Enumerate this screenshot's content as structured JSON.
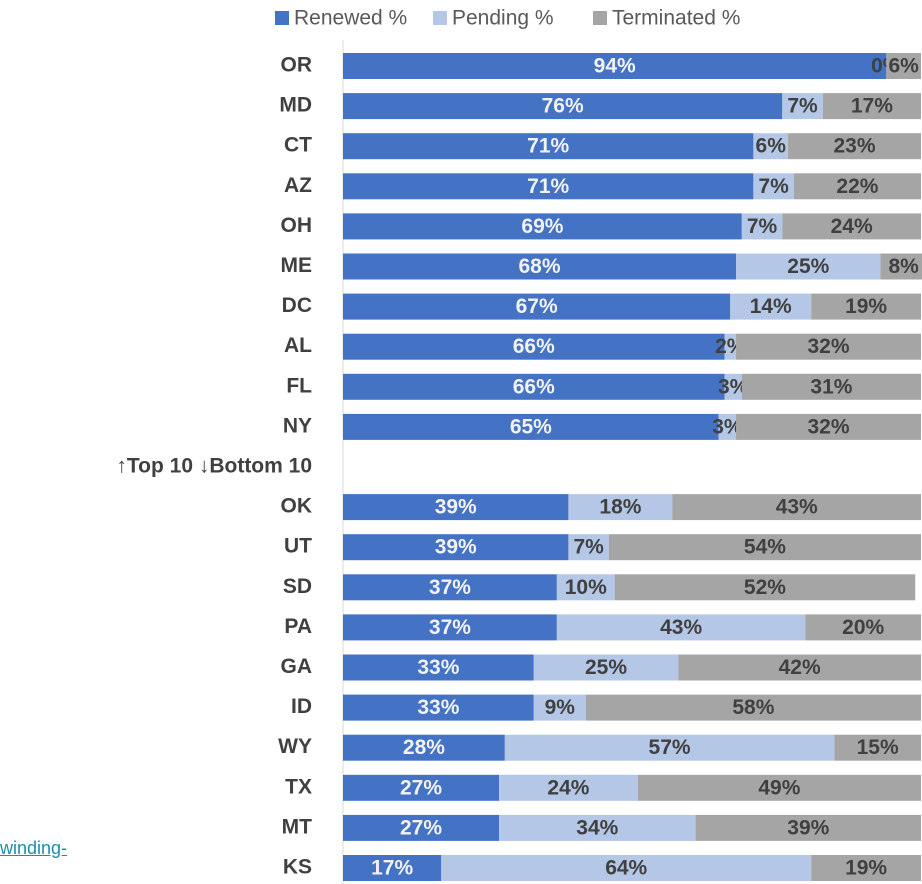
{
  "link_text": "winding-",
  "chart_data": {
    "type": "stacked-bar-horizontal",
    "categories": [
      "OR",
      "MD",
      "CT",
      "AZ",
      "OH",
      "ME",
      "DC",
      "AL",
      "FL",
      "NY",
      "↑Top 10  ↓Bottom 10",
      "OK",
      "UT",
      "SD",
      "PA",
      "GA",
      "ID",
      "WY",
      "TX",
      "MT",
      "KS"
    ],
    "xlim": [
      0,
      100
    ],
    "series": [
      {
        "name": "Renewed %",
        "color": "#4472c4",
        "values": [
          94,
          76,
          71,
          71,
          69,
          68,
          67,
          66,
          66,
          65,
          null,
          39,
          39,
          37,
          37,
          33,
          33,
          28,
          27,
          27,
          17
        ],
        "value_labels": [
          "94%",
          "76%",
          "71%",
          "71%",
          "69%",
          "68%",
          "67%",
          "66%",
          "66%",
          "65%",
          null,
          "39%",
          "39%",
          "37%",
          "37%",
          "33%",
          "33%",
          "28%",
          "27%",
          "27%",
          "17%"
        ]
      },
      {
        "name": "Pending %",
        "color": "#b4c7e7",
        "values": [
          0,
          7,
          6,
          7,
          7,
          25,
          14,
          2,
          3,
          3,
          null,
          18,
          7,
          10,
          43,
          25,
          9,
          57,
          24,
          34,
          64
        ],
        "value_labels": [
          "0%",
          "7%",
          "6%",
          "7%",
          "7%",
          "25%",
          "14%",
          "2%",
          "3%",
          "3%",
          null,
          "18%",
          "7%",
          "10%",
          "43%",
          "25%",
          "9%",
          "57%",
          "24%",
          "34%",
          "64%"
        ]
      },
      {
        "name": "Terminated %",
        "color": "#a5a5a5",
        "values": [
          6,
          17,
          23,
          22,
          24,
          8,
          19,
          32,
          31,
          32,
          null,
          43,
          54,
          52,
          20,
          42,
          58,
          15,
          49,
          39,
          19
        ],
        "value_labels": [
          "6%",
          "17%",
          "23%",
          "22%",
          "24%",
          "8%",
          "19%",
          "32%",
          "31%",
          "32%",
          null,
          "43%",
          "54%",
          "52%",
          "20%",
          "42%",
          "58%",
          "15%",
          "49%",
          "39%",
          "19%"
        ]
      }
    ]
  }
}
